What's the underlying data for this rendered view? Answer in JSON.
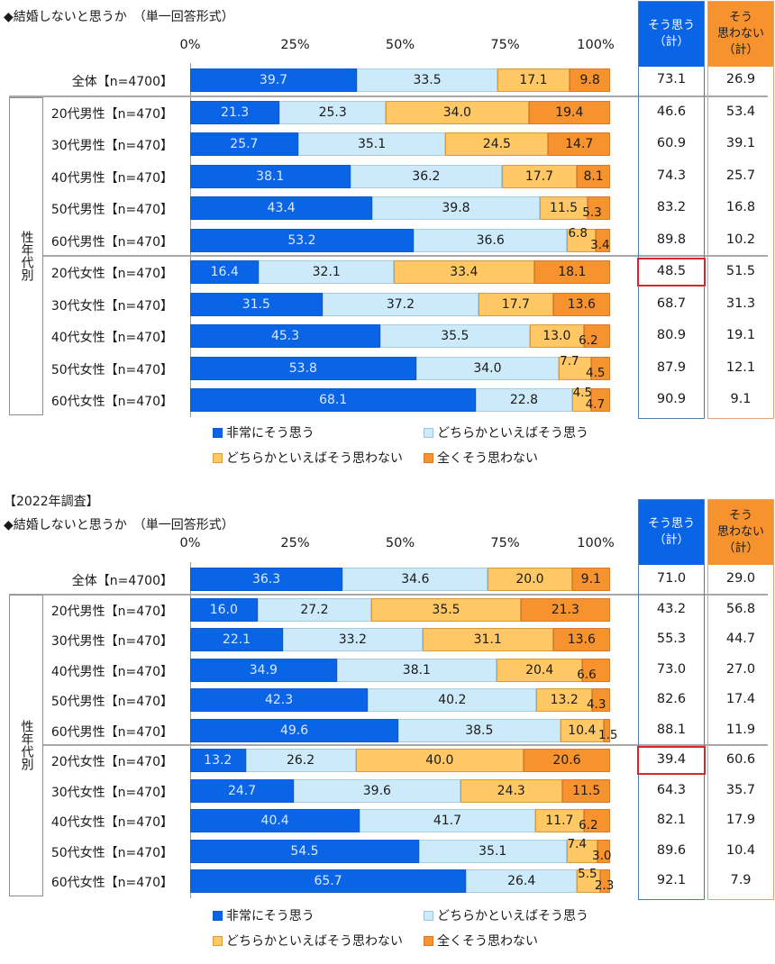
{
  "chart_data": [
    {
      "type": "bar",
      "orientation": "horizontal-stacked-100",
      "survey_tag": "",
      "title": "◆結婚しないと思うか　（単一回答形式）",
      "xticks": [
        "0%",
        "25%",
        "50%",
        "75%",
        "100%"
      ],
      "xlim": [
        0,
        100
      ],
      "group_label": "性年代別",
      "legend": [
        "非常にそう思う",
        "どちらかといえばそう思う",
        "どちらかといえばそう思わない",
        "全くそう思わない"
      ],
      "summary_headers": [
        "そう思う\n（計）",
        "そう\n思わない\n（計）"
      ],
      "categories": [
        "全体【n=4700】",
        "20代男性【n=470】",
        "30代男性【n=470】",
        "40代男性【n=470】",
        "50代男性【n=470】",
        "60代男性【n=470】",
        "20代女性【n=470】",
        "30代女性【n=470】",
        "40代女性【n=470】",
        "50代女性【n=470】",
        "60代女性【n=470】"
      ],
      "series": [
        {
          "name": "非常にそう思う",
          "values": [
            39.7,
            21.3,
            25.7,
            38.1,
            43.4,
            53.2,
            16.4,
            31.5,
            45.3,
            53.8,
            68.1
          ]
        },
        {
          "name": "どちらかといえばそう思う",
          "values": [
            33.5,
            25.3,
            35.1,
            36.2,
            39.8,
            36.6,
            32.1,
            37.2,
            35.5,
            34.0,
            22.8
          ]
        },
        {
          "name": "どちらかといえばそう思わない",
          "values": [
            17.1,
            34.0,
            24.5,
            17.7,
            11.5,
            6.8,
            33.4,
            17.7,
            13.0,
            7.7,
            4.5
          ]
        },
        {
          "name": "全くそう思わない",
          "values": [
            9.8,
            19.4,
            14.7,
            8.1,
            5.3,
            3.4,
            18.1,
            13.6,
            6.2,
            4.5,
            4.7
          ]
        }
      ],
      "summary_yes": [
        "73.1",
        "46.6",
        "60.9",
        "74.3",
        "83.2",
        "89.8",
        "48.5",
        "68.7",
        "80.9",
        "87.9",
        "90.9"
      ],
      "summary_no": [
        "26.9",
        "53.4",
        "39.1",
        "25.7",
        "16.8",
        "10.2",
        "51.5",
        "31.3",
        "19.1",
        "12.1",
        "9.1"
      ],
      "highlighted_row": 6
    },
    {
      "type": "bar",
      "orientation": "horizontal-stacked-100",
      "survey_tag": "【2022年調査】",
      "title": "◆結婚しないと思うか　（単一回答形式）",
      "xticks": [
        "0%",
        "25%",
        "50%",
        "75%",
        "100%"
      ],
      "xlim": [
        0,
        100
      ],
      "group_label": "性年代別",
      "legend": [
        "非常にそう思う",
        "どちらかといえばそう思う",
        "どちらかといえばそう思わない",
        "全くそう思わない"
      ],
      "summary_headers": [
        "そう思う\n（計）",
        "そう\n思わない\n（計）"
      ],
      "categories": [
        "全体【n=4700】",
        "20代男性【n=470】",
        "30代男性【n=470】",
        "40代男性【n=470】",
        "50代男性【n=470】",
        "60代男性【n=470】",
        "20代女性【n=470】",
        "30代女性【n=470】",
        "40代女性【n=470】",
        "50代女性【n=470】",
        "60代女性【n=470】"
      ],
      "series": [
        {
          "name": "非常にそう思う",
          "values": [
            36.3,
            16.0,
            22.1,
            34.9,
            42.3,
            49.6,
            13.2,
            24.7,
            40.4,
            54.5,
            65.7
          ]
        },
        {
          "name": "どちらかといえばそう思う",
          "values": [
            34.6,
            27.2,
            33.2,
            38.1,
            40.2,
            38.5,
            26.2,
            39.6,
            41.7,
            35.1,
            26.4
          ]
        },
        {
          "name": "どちらかといえばそう思わない",
          "values": [
            20.0,
            35.5,
            31.1,
            20.4,
            13.2,
            10.4,
            40.0,
            24.3,
            11.7,
            7.4,
            5.5
          ]
        },
        {
          "name": "全くそう思わない",
          "values": [
            9.1,
            21.3,
            13.6,
            6.6,
            4.3,
            1.5,
            20.6,
            11.5,
            6.2,
            3.0,
            2.3
          ]
        }
      ],
      "summary_yes": [
        "71.0",
        "43.2",
        "55.3",
        "73.0",
        "82.6",
        "88.1",
        "39.4",
        "64.3",
        "82.1",
        "89.6",
        "92.1"
      ],
      "summary_no": [
        "29.0",
        "56.8",
        "44.7",
        "27.0",
        "17.4",
        "11.9",
        "60.6",
        "35.7",
        "17.9",
        "10.4",
        "7.9"
      ],
      "highlighted_row": 6
    }
  ],
  "colors": {
    "very_agree": "#0a64e6",
    "somewhat_agree": "#cdeafb",
    "somewhat_disagree": "#ffc864",
    "strongly_disagree": "#f7932f",
    "highlight": "#d9262d"
  }
}
